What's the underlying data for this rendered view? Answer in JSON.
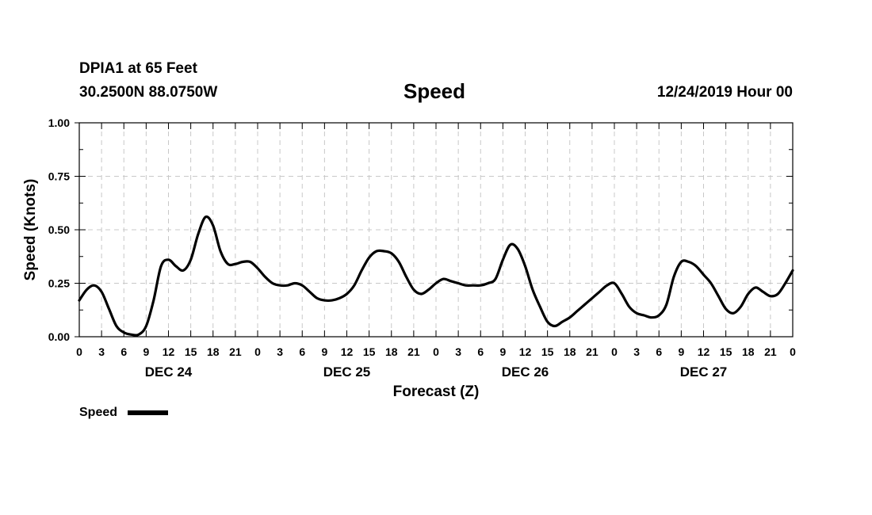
{
  "header": {
    "station": "DPIA1 at 65 Feet",
    "coords": "30.2500N 88.0750W",
    "title": "Speed",
    "run": "12/24/2019 Hour 00"
  },
  "chart_data": {
    "type": "line",
    "title": "Speed",
    "xlabel": "Forecast (Z)",
    "ylabel": "Speed (Knots)",
    "xlim": [
      0,
      96
    ],
    "ylim": [
      0,
      1
    ],
    "grid": true,
    "yticks": [
      "0.00",
      "0.25",
      "0.50",
      "0.75",
      "1.00"
    ],
    "ytick_values": [
      0,
      0.25,
      0.5,
      0.75,
      1.0
    ],
    "xtick_hours": [
      0,
      3,
      6,
      9,
      12,
      15,
      18,
      21,
      24,
      27,
      30,
      33,
      36,
      39,
      42,
      45,
      48,
      51,
      54,
      57,
      60,
      63,
      66,
      69,
      72,
      75,
      78,
      81,
      84,
      87,
      90,
      93,
      96
    ],
    "xtick_labels": [
      "0",
      "3",
      "6",
      "9",
      "12",
      "15",
      "18",
      "21",
      "0",
      "3",
      "6",
      "9",
      "12",
      "15",
      "18",
      "21",
      "0",
      "3",
      "6",
      "9",
      "12",
      "15",
      "18",
      "21",
      "0",
      "3",
      "6",
      "9",
      "12",
      "15",
      "18",
      "21",
      "0"
    ],
    "day_labels": [
      {
        "label": "DEC 24",
        "hour": 12
      },
      {
        "label": "DEC 25",
        "hour": 36
      },
      {
        "label": "DEC 26",
        "hour": 60
      },
      {
        "label": "DEC 27",
        "hour": 84
      }
    ],
    "legend": {
      "label": "Speed",
      "position": "bottom-left"
    },
    "series": [
      {
        "name": "Speed",
        "color": "#000000",
        "x": [
          0,
          1,
          2,
          3,
          4,
          5,
          6,
          7,
          8,
          9,
          10,
          11,
          12,
          13,
          14,
          15,
          16,
          17,
          18,
          19,
          20,
          21,
          22,
          23,
          24,
          25,
          26,
          27,
          28,
          29,
          30,
          31,
          32,
          33,
          34,
          35,
          36,
          37,
          38,
          39,
          40,
          41,
          42,
          43,
          44,
          45,
          46,
          47,
          48,
          49,
          50,
          51,
          52,
          53,
          54,
          55,
          56,
          57,
          58,
          59,
          60,
          61,
          62,
          63,
          64,
          65,
          66,
          67,
          68,
          69,
          70,
          71,
          72,
          73,
          74,
          75,
          76,
          77,
          78,
          79,
          80,
          81,
          82,
          83,
          84,
          85,
          86,
          87,
          88,
          89,
          90,
          91,
          92,
          93,
          94,
          95,
          96
        ],
        "values": [
          0.17,
          0.22,
          0.24,
          0.21,
          0.13,
          0.05,
          0.02,
          0.01,
          0.01,
          0.05,
          0.17,
          0.33,
          0.36,
          0.33,
          0.31,
          0.36,
          0.48,
          0.56,
          0.52,
          0.4,
          0.34,
          0.34,
          0.35,
          0.35,
          0.32,
          0.28,
          0.25,
          0.24,
          0.24,
          0.25,
          0.24,
          0.21,
          0.18,
          0.17,
          0.17,
          0.18,
          0.2,
          0.24,
          0.31,
          0.37,
          0.4,
          0.4,
          0.39,
          0.35,
          0.28,
          0.22,
          0.2,
          0.22,
          0.25,
          0.27,
          0.26,
          0.25,
          0.24,
          0.24,
          0.24,
          0.25,
          0.27,
          0.36,
          0.43,
          0.41,
          0.33,
          0.22,
          0.14,
          0.07,
          0.05,
          0.07,
          0.09,
          0.12,
          0.15,
          0.18,
          0.21,
          0.24,
          0.25,
          0.2,
          0.14,
          0.11,
          0.1,
          0.09,
          0.1,
          0.15,
          0.28,
          0.35,
          0.35,
          0.33,
          0.29,
          0.25,
          0.19,
          0.13,
          0.11,
          0.14,
          0.2,
          0.23,
          0.21,
          0.19,
          0.2,
          0.25,
          0.31
        ]
      }
    ]
  }
}
